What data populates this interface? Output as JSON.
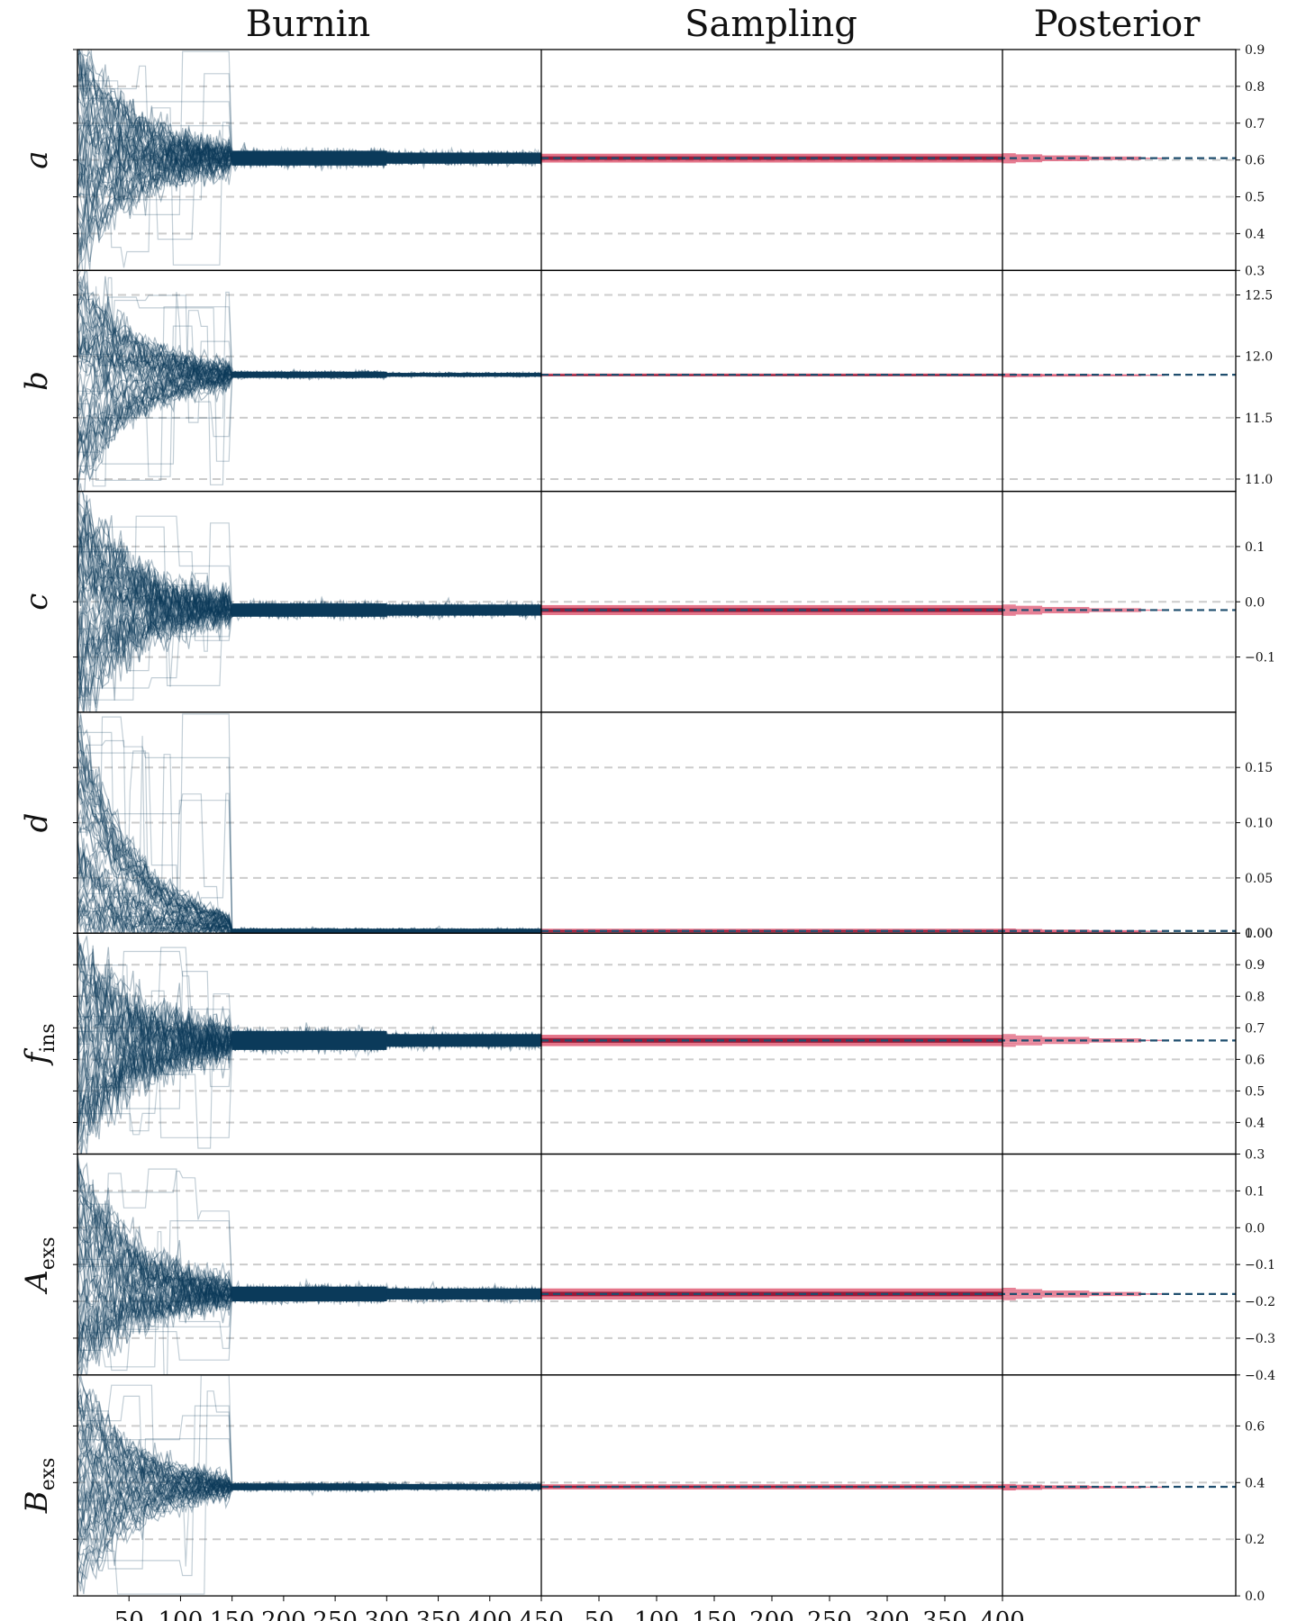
{
  "chart_data": {
    "type": "line",
    "columns": [
      "Burnin",
      "Sampling",
      "Posterior"
    ],
    "burnin": {
      "x_ticks": [
        50,
        100,
        150,
        200,
        250,
        300,
        350,
        400,
        450
      ],
      "x_range": [
        0,
        450
      ],
      "stage_boundaries": [
        150,
        300
      ]
    },
    "sampling": {
      "x_ticks": [
        50,
        100,
        150,
        200,
        250,
        300,
        350,
        400
      ],
      "x_range": [
        0,
        400
      ]
    },
    "grid": "dashed-horizontal",
    "colors": {
      "burnin_chains": "#0b3a5a",
      "sampling_band": "#d62a4a",
      "sampling_core": "#8a0b2a",
      "posterior_hist": "#e0607a",
      "best_fit_line": "#1f4e6e",
      "gridline": "#cccccc"
    },
    "panels": [
      {
        "label": "a",
        "sub": "",
        "ylim": [
          0.3,
          0.9
        ],
        "ticks": [
          "0.9",
          "0.8",
          "0.7",
          "0.6",
          "0.5",
          "0.4",
          "0.3"
        ],
        "tick_values": [
          0.9,
          0.8,
          0.7,
          0.6,
          0.5,
          0.4,
          0.3
        ],
        "init_range": [
          0.3,
          0.9
        ],
        "final": 0.605,
        "width_by_stage": [
          0.04,
          0.02,
          0.015
        ],
        "sampling_width": 0.012
      },
      {
        "label": "b",
        "sub": "",
        "ylim": [
          10.9,
          12.7
        ],
        "ticks": [
          "12.5",
          "12.0",
          "11.5",
          "11.0"
        ],
        "tick_values": [
          12.5,
          12.0,
          11.5,
          11.0
        ],
        "init_range": [
          10.9,
          12.7
        ],
        "final": 11.85,
        "width_by_stage": [
          0.08,
          0.025,
          0.015
        ],
        "sampling_width": 0.01
      },
      {
        "label": "c",
        "sub": "",
        "ylim": [
          -0.2,
          0.2
        ],
        "ticks": [
          "0.1",
          "0.0",
          "−0.1"
        ],
        "tick_values": [
          0.1,
          0.0,
          -0.1
        ],
        "init_range": [
          -0.2,
          0.2
        ],
        "final": -0.015,
        "width_by_stage": [
          0.03,
          0.012,
          0.01
        ],
        "sampling_width": 0.009
      },
      {
        "label": "d",
        "sub": "",
        "ylim": [
          0.0,
          0.2
        ],
        "ticks": [
          "0.15",
          "0.10",
          "0.05",
          "0.00"
        ],
        "tick_values": [
          0.15,
          0.1,
          0.05,
          0.0
        ],
        "init_range": [
          0.0,
          0.2
        ],
        "final": 0.002,
        "width_by_stage": [
          0.006,
          0.002,
          0.002
        ],
        "sampling_width": 0.002
      },
      {
        "label": "f",
        "sub": "ins",
        "ylim": [
          0.3,
          1.0
        ],
        "ticks": [
          "1.00",
          "0.9",
          "0.8",
          "0.7",
          "0.6",
          "0.5",
          "0.4",
          "0.3"
        ],
        "tick_values": [
          1.0,
          0.9,
          0.8,
          0.7,
          0.6,
          0.5,
          0.4,
          0.3
        ],
        "init_range": [
          0.3,
          1.0
        ],
        "final": 0.66,
        "width_by_stage": [
          0.06,
          0.03,
          0.02
        ],
        "sampling_width": 0.018
      },
      {
        "label": "A",
        "sub": "exs",
        "ylim": [
          -0.4,
          0.2
        ],
        "ticks": [
          "0.1",
          "0.0",
          "−0.1",
          "−0.2",
          "−0.3",
          "−0.4"
        ],
        "tick_values": [
          0.1,
          0.0,
          -0.1,
          -0.2,
          -0.3,
          -0.4
        ],
        "init_range": [
          -0.4,
          0.2
        ],
        "final": -0.18,
        "width_by_stage": [
          0.04,
          0.02,
          0.015
        ],
        "sampling_width": 0.015
      },
      {
        "label": "B",
        "sub": "exs",
        "ylim": [
          0.0,
          0.78
        ],
        "ticks": [
          "0.6",
          "0.4",
          "0.2",
          "0.0"
        ],
        "tick_values": [
          0.6,
          0.4,
          0.2,
          0.0
        ],
        "init_range": [
          0.0,
          0.78
        ],
        "final": 0.385,
        "width_by_stage": [
          0.03,
          0.012,
          0.01
        ],
        "sampling_width": 0.009
      }
    ]
  }
}
